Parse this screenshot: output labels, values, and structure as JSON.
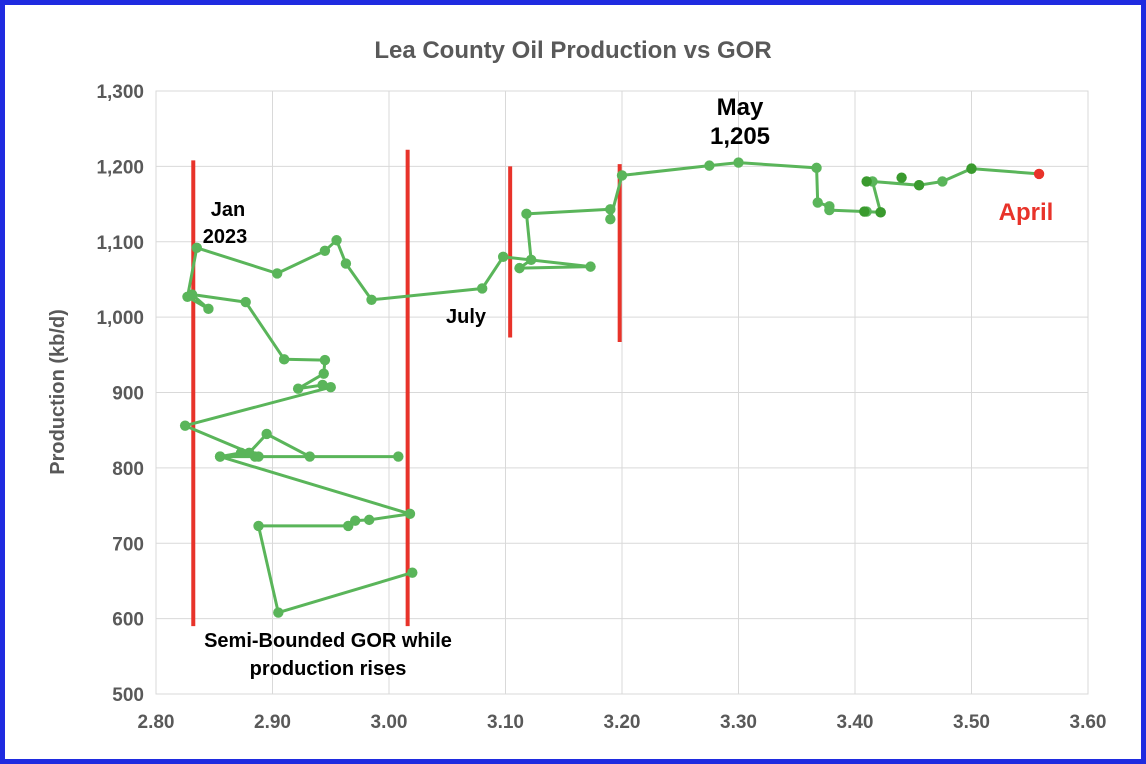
{
  "chart_data": {
    "type": "scatter",
    "title": "Lea County Oil Production vs GOR",
    "xlabel": "",
    "ylabel": "Production (kb/d)",
    "xlim": [
      2.8,
      3.6
    ],
    "ylim": [
      500,
      1300
    ],
    "x_ticks": [
      "2.80",
      "2.90",
      "3.00",
      "3.10",
      "3.20",
      "3.30",
      "3.40",
      "3.50",
      "3.60"
    ],
    "y_ticks": [
      "500",
      "600",
      "700",
      "800",
      "900",
      "1,000",
      "1,100",
      "1,200",
      "1,300"
    ],
    "grid": true,
    "colors": {
      "series": "#5ab55a",
      "series_dark": "#3a9a2e",
      "last_point": "#e8332a",
      "bounds": "#e8332a",
      "frame": "#1f2be0",
      "text": "#595959"
    },
    "series": [
      {
        "name": "Lea County",
        "x": [
          3.02,
          2.905,
          2.888,
          2.965,
          2.971,
          2.983,
          3.018,
          2.855,
          2.885,
          2.88,
          2.895,
          2.932,
          3.008,
          2.855,
          2.873,
          2.888,
          2.825,
          2.95,
          2.943,
          2.922,
          2.944,
          2.945,
          2.91,
          2.877,
          2.831,
          2.845,
          2.827,
          2.835,
          2.904,
          2.945,
          2.955,
          2.963,
          2.985,
          3.08,
          3.098,
          3.173,
          3.112,
          3.122,
          3.118,
          3.19,
          3.19,
          3.2,
          3.275,
          3.3,
          3.367,
          3.368,
          3.378,
          3.378,
          3.41,
          3.422,
          3.415,
          3.455,
          3.475,
          3.5,
          3.558
        ],
        "y": [
          661,
          608,
          723,
          723,
          730,
          731,
          739,
          815,
          815,
          820,
          845,
          815,
          815,
          815,
          820,
          815,
          856,
          907,
          910,
          905,
          925,
          943,
          944,
          1020,
          1030,
          1011,
          1027,
          1092,
          1058,
          1088,
          1102,
          1071,
          1023,
          1038,
          1080,
          1067,
          1065,
          1076,
          1137,
          1143,
          1130,
          1188,
          1201,
          1205,
          1198,
          1152,
          1147,
          1142,
          1140,
          1139,
          1180,
          1175,
          1180,
          1197,
          1190
        ]
      }
    ],
    "dark_points": [
      {
        "x": 3.41,
        "y": 1180
      },
      {
        "x": 3.44,
        "y": 1185
      },
      {
        "x": 3.455,
        "y": 1175
      },
      {
        "x": 3.422,
        "y": 1139
      },
      {
        "x": 3.408,
        "y": 1140
      },
      {
        "x": 3.5,
        "y": 1197
      }
    ],
    "bounds": [
      {
        "x": 2.832,
        "y1": 590,
        "y2": 1208
      },
      {
        "x": 3.016,
        "y1": 590,
        "y2": 1222
      },
      {
        "x": 3.104,
        "y1": 973,
        "y2": 1200
      },
      {
        "x": 3.198,
        "y1": 967,
        "y2": 1203
      }
    ],
    "annotations": [
      {
        "key": "jan",
        "lines": [
          "Jan",
          "2023"
        ]
      },
      {
        "key": "july",
        "lines": [
          "July"
        ]
      },
      {
        "key": "may",
        "lines": [
          "May",
          "1,205"
        ]
      },
      {
        "key": "april",
        "lines": [
          "April"
        ]
      },
      {
        "key": "semi",
        "lines": [
          "Semi-Bounded GOR while",
          "production rises"
        ]
      }
    ]
  }
}
